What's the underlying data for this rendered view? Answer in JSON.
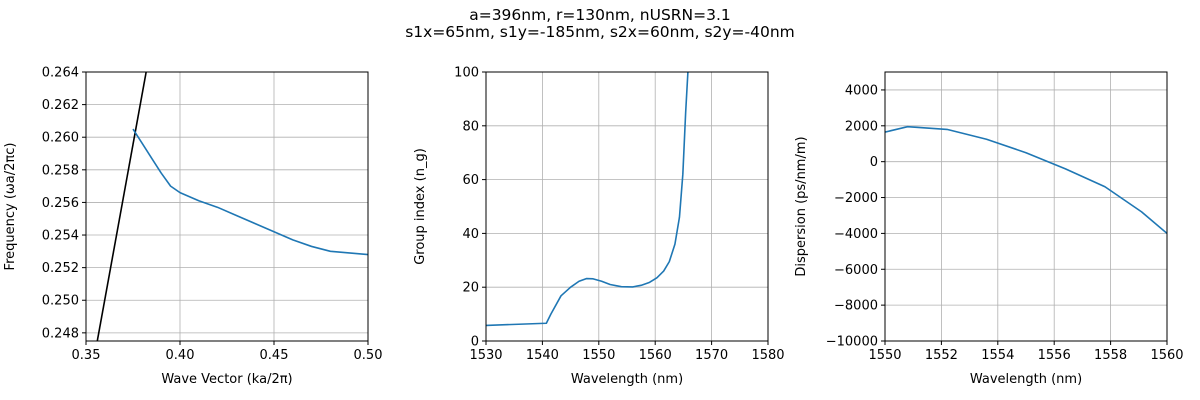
{
  "figure": {
    "suptitle_line1": "a=396nm, r=130nm, nUSRN=3.1",
    "suptitle_line2": "s1x=65nm, s1y=-185nm, s2x=60nm, s2y=-40nm"
  },
  "chart_data": [
    {
      "type": "line",
      "xlabel": "Wave Vector (ka/2π)",
      "ylabel": "Frequency (ωa/2πc)",
      "xlim": [
        0.35,
        0.5
      ],
      "ylim": [
        0.2475,
        0.264
      ],
      "grid": true,
      "xticks": [
        "0.35",
        "0.40",
        "0.45",
        "0.50"
      ],
      "yticks": [
        "0.248",
        "0.250",
        "0.252",
        "0.254",
        "0.256",
        "0.258",
        "0.260",
        "0.262",
        "0.264"
      ],
      "series": [
        {
          "color": "#000000",
          "x": [
            0.356,
            0.382
          ],
          "y": [
            0.2475,
            0.264
          ]
        },
        {
          "color": "#1f77b4",
          "x": [
            0.375,
            0.38,
            0.385,
            0.39,
            0.395,
            0.4,
            0.41,
            0.42,
            0.43,
            0.44,
            0.45,
            0.46,
            0.47,
            0.48,
            0.49,
            0.5
          ],
          "y": [
            0.2605,
            0.2596,
            0.2587,
            0.2578,
            0.257,
            0.2566,
            0.2561,
            0.2557,
            0.2552,
            0.2547,
            0.2542,
            0.2537,
            0.2533,
            0.253,
            0.2529,
            0.2528
          ]
        }
      ]
    },
    {
      "type": "line",
      "xlabel": "Wavelength (nm)",
      "ylabel": "Group index (n_g)",
      "xlim": [
        1530,
        1580
      ],
      "ylim": [
        0,
        100
      ],
      "grid": true,
      "xticks": [
        "1530",
        "1540",
        "1550",
        "1560",
        "1570",
        "1580"
      ],
      "yticks": [
        "0",
        "20",
        "40",
        "60",
        "80",
        "100"
      ],
      "series": [
        {
          "color": "#1f77b4",
          "x": [
            1530,
            1540.7,
            1541.5,
            1543.3,
            1545,
            1546.5,
            1547.8,
            1549,
            1550.5,
            1552,
            1554,
            1556,
            1557.5,
            1559,
            1560.3,
            1561.5,
            1562.5,
            1563.5,
            1564.3,
            1564.9,
            1565.4,
            1565.8,
            1565.95
          ],
          "y": [
            5.8,
            6.6,
            10,
            16.8,
            20,
            22.2,
            23.2,
            23.1,
            22.2,
            21,
            20.2,
            20.1,
            20.7,
            21.8,
            23.5,
            26,
            29.5,
            36,
            46,
            62,
            85,
            100,
            100
          ]
        }
      ]
    },
    {
      "type": "line",
      "xlabel": "Wavelength (nm)",
      "ylabel": "Dispersion (ps/nm/m)",
      "xlim": [
        1550,
        1560
      ],
      "ylim": [
        -10000,
        5000
      ],
      "grid": true,
      "xticks": [
        "1550",
        "1552",
        "1554",
        "1556",
        "1558",
        "1560"
      ],
      "yticks": [
        "−10000",
        "−8000",
        "−6000",
        "−4000",
        "−2000",
        "0",
        "2000",
        "4000"
      ],
      "series": [
        {
          "color": "#1f77b4",
          "x": [
            1550,
            1550.8,
            1552.2,
            1553.6,
            1555,
            1556.4,
            1557.8,
            1559.1,
            1560
          ],
          "y": [
            1650,
            1950,
            1800,
            1250,
            500,
            -400,
            -1400,
            -2800,
            -4000
          ]
        }
      ]
    }
  ]
}
